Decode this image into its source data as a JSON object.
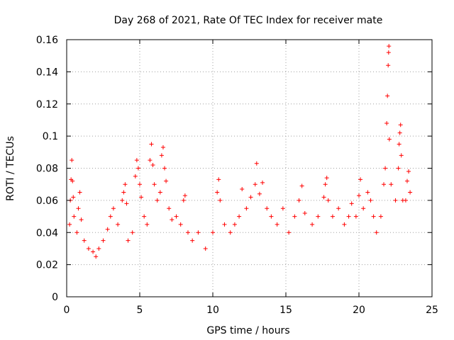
{
  "chart_data": {
    "type": "scatter",
    "title": "Day 268 of 2021, Rate Of TEC Index for receiver mate",
    "xlabel": "GPS time / hours",
    "ylabel": "ROTI / TECUs",
    "xlim": [
      0,
      25
    ],
    "ylim": [
      0,
      0.16
    ],
    "xticks": [
      0,
      5,
      10,
      15,
      20,
      25
    ],
    "xtick_labels": [
      "0",
      "5",
      "10",
      "15",
      "20",
      "25"
    ],
    "yticks": [
      0,
      0.02,
      0.04,
      0.06,
      0.08,
      0.1,
      0.12,
      0.14,
      0.16
    ],
    "ytick_labels": [
      "0",
      "0.02",
      "0.04",
      "0.06",
      "0.08",
      "0.1",
      "0.12",
      "0.14",
      "0.16"
    ],
    "grid": true,
    "marker": "+",
    "series": [
      {
        "name": "ROTI",
        "color": "#ff0000",
        "points": [
          [
            0.2,
            0.045
          ],
          [
            0.25,
            0.06
          ],
          [
            0.3,
            0.073
          ],
          [
            0.35,
            0.085
          ],
          [
            0.4,
            0.072
          ],
          [
            0.45,
            0.062
          ],
          [
            0.5,
            0.05
          ],
          [
            0.7,
            0.04
          ],
          [
            0.8,
            0.055
          ],
          [
            0.9,
            0.065
          ],
          [
            1.0,
            0.048
          ],
          [
            1.2,
            0.035
          ],
          [
            1.5,
            0.03
          ],
          [
            1.8,
            0.028
          ],
          [
            2.0,
            0.025
          ],
          [
            2.2,
            0.03
          ],
          [
            2.5,
            0.035
          ],
          [
            2.8,
            0.042
          ],
          [
            3.0,
            0.05
          ],
          [
            3.2,
            0.055
          ],
          [
            3.5,
            0.045
          ],
          [
            3.8,
            0.06
          ],
          [
            3.9,
            0.065
          ],
          [
            4.0,
            0.07
          ],
          [
            4.1,
            0.058
          ],
          [
            4.2,
            0.035
          ],
          [
            4.5,
            0.04
          ],
          [
            4.7,
            0.075
          ],
          [
            4.8,
            0.085
          ],
          [
            4.9,
            0.08
          ],
          [
            5.0,
            0.07
          ],
          [
            5.1,
            0.062
          ],
          [
            5.3,
            0.05
          ],
          [
            5.5,
            0.045
          ],
          [
            5.7,
            0.085
          ],
          [
            5.8,
            0.095
          ],
          [
            5.9,
            0.082
          ],
          [
            6.0,
            0.07
          ],
          [
            6.2,
            0.06
          ],
          [
            6.4,
            0.065
          ],
          [
            6.5,
            0.088
          ],
          [
            6.6,
            0.093
          ],
          [
            6.7,
            0.08
          ],
          [
            6.8,
            0.072
          ],
          [
            7.0,
            0.055
          ],
          [
            7.2,
            0.048
          ],
          [
            7.5,
            0.05
          ],
          [
            7.8,
            0.045
          ],
          [
            8.0,
            0.06
          ],
          [
            8.1,
            0.063
          ],
          [
            8.3,
            0.04
          ],
          [
            8.6,
            0.035
          ],
          [
            9.0,
            0.04
          ],
          [
            9.5,
            0.03
          ],
          [
            10.0,
            0.04
          ],
          [
            10.3,
            0.065
          ],
          [
            10.4,
            0.073
          ],
          [
            10.5,
            0.06
          ],
          [
            10.8,
            0.045
          ],
          [
            11.2,
            0.04
          ],
          [
            11.5,
            0.045
          ],
          [
            11.8,
            0.05
          ],
          [
            12.0,
            0.067
          ],
          [
            12.3,
            0.055
          ],
          [
            12.6,
            0.062
          ],
          [
            12.9,
            0.07
          ],
          [
            13.0,
            0.083
          ],
          [
            13.2,
            0.064
          ],
          [
            13.4,
            0.071
          ],
          [
            13.7,
            0.055
          ],
          [
            14.0,
            0.05
          ],
          [
            14.4,
            0.045
          ],
          [
            14.8,
            0.055
          ],
          [
            15.2,
            0.04
          ],
          [
            15.6,
            0.05
          ],
          [
            15.9,
            0.06
          ],
          [
            16.1,
            0.069
          ],
          [
            16.3,
            0.052
          ],
          [
            16.8,
            0.045
          ],
          [
            17.2,
            0.05
          ],
          [
            17.6,
            0.062
          ],
          [
            17.7,
            0.07
          ],
          [
            17.8,
            0.074
          ],
          [
            17.9,
            0.06
          ],
          [
            18.2,
            0.05
          ],
          [
            18.6,
            0.055
          ],
          [
            19.0,
            0.045
          ],
          [
            19.3,
            0.05
          ],
          [
            19.5,
            0.058
          ],
          [
            19.8,
            0.05
          ],
          [
            20.0,
            0.063
          ],
          [
            20.1,
            0.073
          ],
          [
            20.3,
            0.055
          ],
          [
            20.6,
            0.065
          ],
          [
            20.8,
            0.06
          ],
          [
            21.0,
            0.05
          ],
          [
            21.2,
            0.04
          ],
          [
            21.5,
            0.05
          ],
          [
            21.7,
            0.07
          ],
          [
            21.8,
            0.08
          ],
          [
            21.9,
            0.108
          ],
          [
            21.95,
            0.125
          ],
          [
            22.0,
            0.144
          ],
          [
            22.03,
            0.152
          ],
          [
            22.05,
            0.156
          ],
          [
            22.08,
            0.098
          ],
          [
            22.2,
            0.07
          ],
          [
            22.5,
            0.06
          ],
          [
            22.7,
            0.08
          ],
          [
            22.75,
            0.095
          ],
          [
            22.8,
            0.102
          ],
          [
            22.85,
            0.107
          ],
          [
            22.9,
            0.088
          ],
          [
            23.0,
            0.06
          ],
          [
            23.2,
            0.06
          ],
          [
            23.3,
            0.072
          ],
          [
            23.4,
            0.078
          ],
          [
            23.5,
            0.065
          ]
        ]
      }
    ]
  }
}
